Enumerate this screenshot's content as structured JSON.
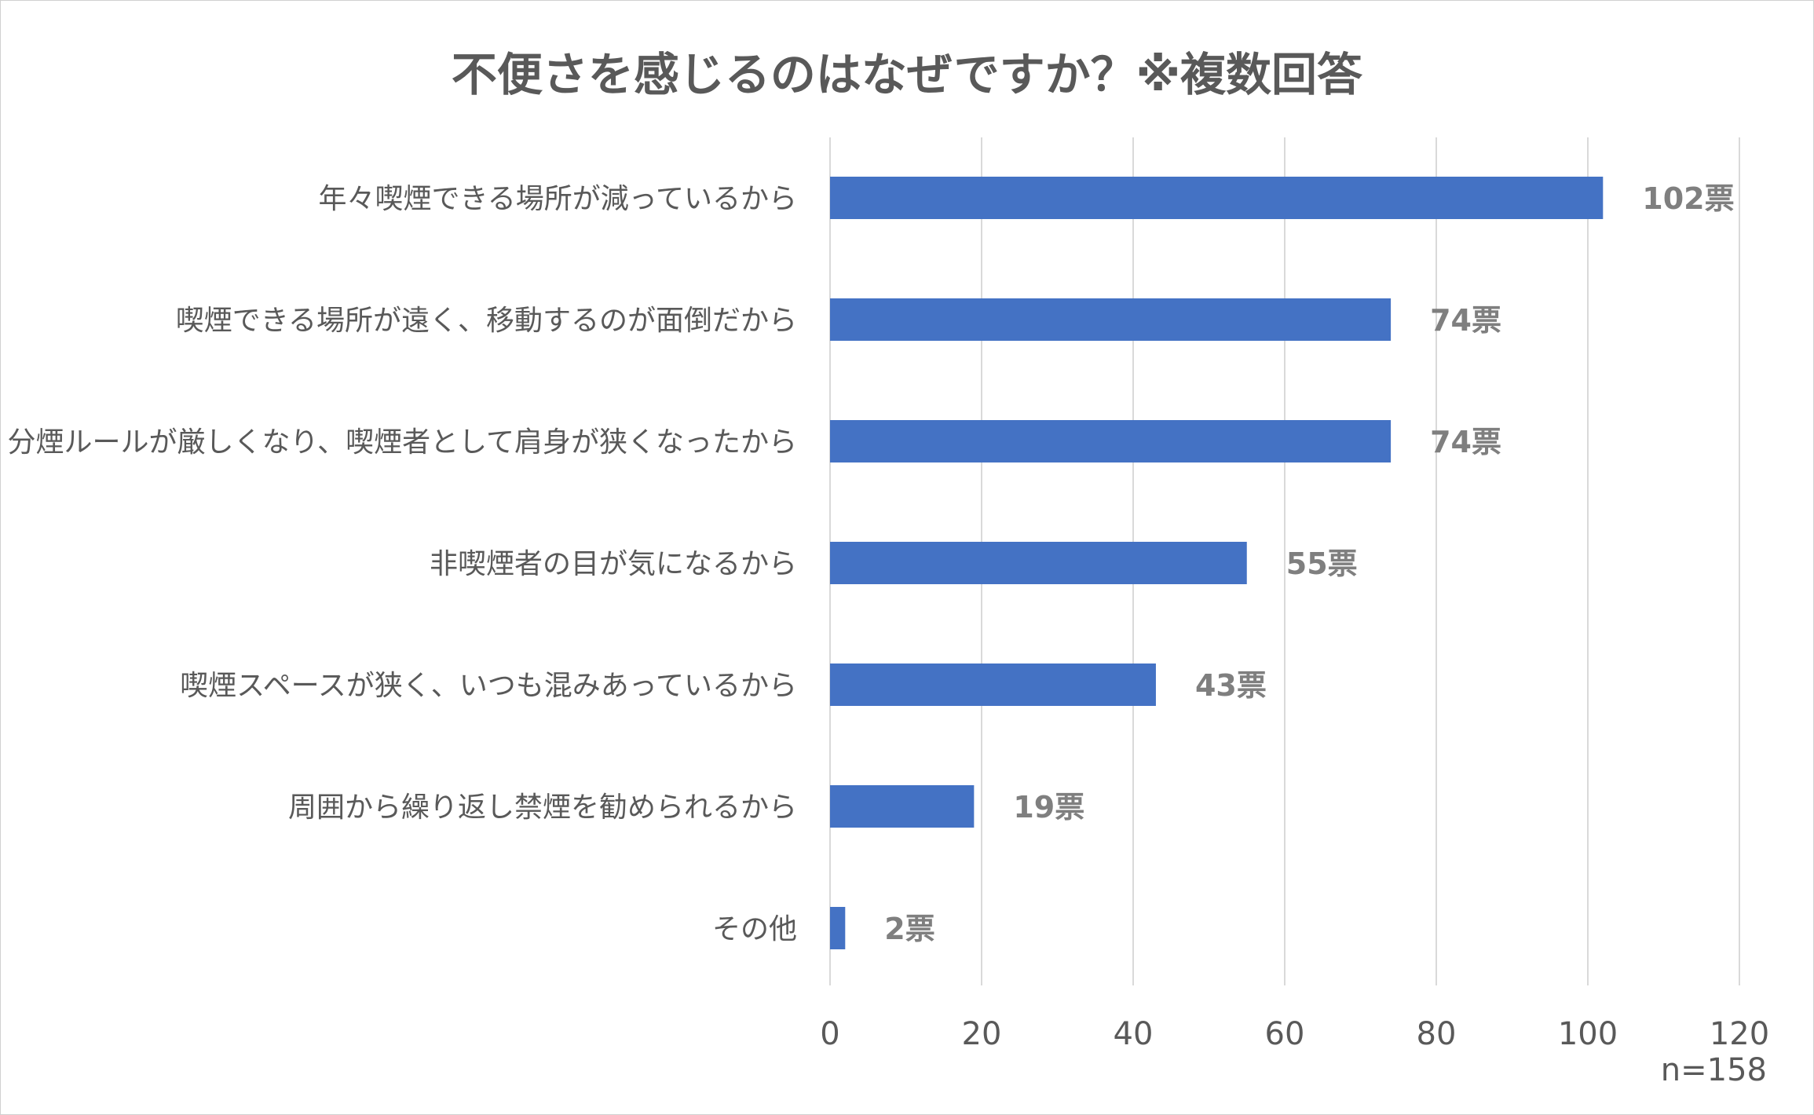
{
  "chart_data": {
    "type": "bar",
    "orientation": "horizontal",
    "title": "不便さを感じるのはなぜですか？※複数回答",
    "categories": [
      "年々喫煙できる場所が減っているから",
      "喫煙できる場所が遠く、移動するのが面倒だから",
      "分煙ルールが厳しくなり、喫煙者として肩身が狭くなったから",
      "非喫煙者の目が気になるから",
      "喫煙スペースが狭く、いつも混みあっているから",
      "周囲から繰り返し禁煙を勧められるから",
      "その他"
    ],
    "values": [
      102,
      74,
      74,
      55,
      43,
      19,
      2
    ],
    "data_labels": [
      "102票",
      "74票",
      "74票",
      "55票",
      "43票",
      "19票",
      "2票"
    ],
    "xlim": [
      0,
      120
    ],
    "xticks": [
      "0",
      "20",
      "40",
      "60",
      "80",
      "100",
      "120"
    ],
    "grid": true,
    "bar_color": "#4472c4",
    "note": "n=158"
  }
}
